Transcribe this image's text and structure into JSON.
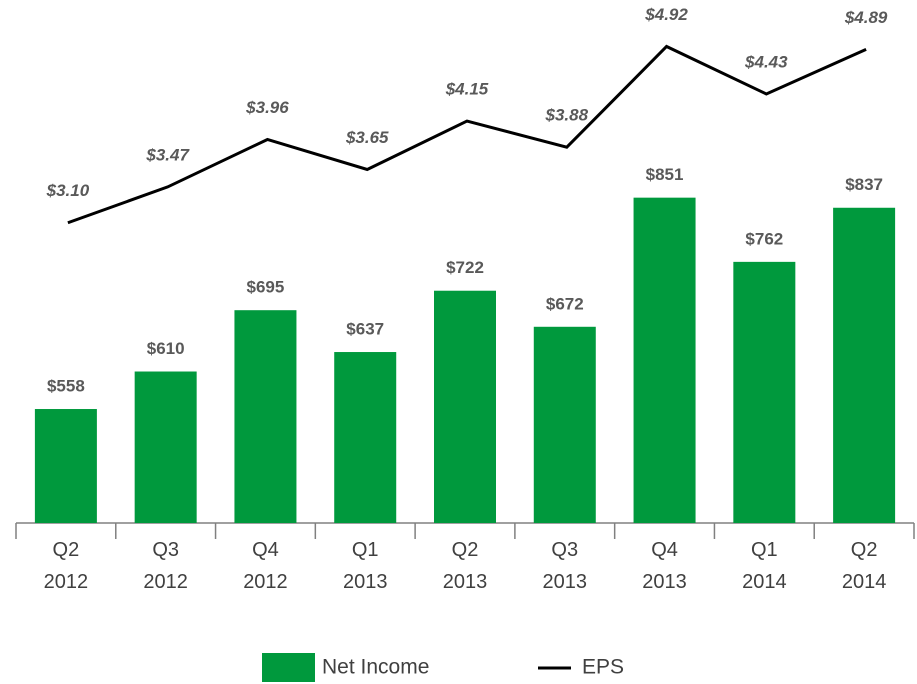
{
  "chart_data": {
    "type": "bar_line",
    "categories": [
      [
        "Q2",
        "2012"
      ],
      [
        "Q3",
        "2012"
      ],
      [
        "Q4",
        "2012"
      ],
      [
        "Q1",
        "2013"
      ],
      [
        "Q2",
        "2013"
      ],
      [
        "Q3",
        "2013"
      ],
      [
        "Q4",
        "2013"
      ],
      [
        "Q1",
        "2014"
      ],
      [
        "Q2",
        "2014"
      ]
    ],
    "series": [
      {
        "name": "Net Income",
        "type": "bar",
        "color": "#00993d",
        "values": [
          558,
          610,
          695,
          637,
          722,
          672,
          851,
          762,
          837
        ],
        "value_labels": [
          "$558",
          "$610",
          "$695",
          "$637",
          "$722",
          "$672",
          "$851",
          "$762",
          "$837"
        ]
      },
      {
        "name": "EPS",
        "type": "line",
        "axis": "y2",
        "color": "#000000",
        "values": [
          3.1,
          3.47,
          3.96,
          3.65,
          4.15,
          3.88,
          4.92,
          4.43,
          4.89
        ],
        "value_labels": [
          "$3.10",
          "$3.47",
          "$3.96",
          "$3.65",
          "$4.15",
          "$3.88",
          "$4.92",
          "$4.43",
          "$4.89"
        ]
      }
    ],
    "ylim": [
      400,
      1125
    ],
    "y2lim": [
      0,
      5.4
    ],
    "legend": "bottom"
  }
}
